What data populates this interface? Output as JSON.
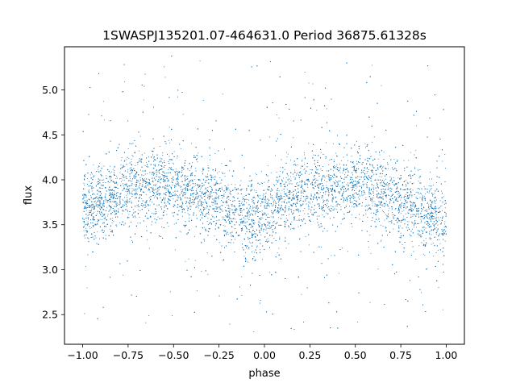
{
  "chart_data": {
    "type": "scatter",
    "title": "1SWASPJ135201.07-464631.0 Period 36875.61328s",
    "xlabel": "phase",
    "ylabel": "flux",
    "xlim": [
      -1.1,
      1.1
    ],
    "ylim": [
      2.17,
      5.48
    ],
    "xticks": [
      -1.0,
      -0.75,
      -0.5,
      -0.25,
      0.0,
      0.25,
      0.5,
      0.75,
      1.0
    ],
    "xtick_labels": [
      "−1.00",
      "−0.75",
      "−0.50",
      "−0.25",
      "0.00",
      "0.25",
      "0.50",
      "0.75",
      "1.00"
    ],
    "yticks": [
      2.5,
      3.0,
      3.5,
      4.0,
      4.5,
      5.0
    ],
    "ytick_labels": [
      "2.5",
      "3.0",
      "3.5",
      "4.0",
      "4.5",
      "5.0"
    ],
    "point_color": "#1f77b4",
    "grid": false,
    "legend": "none",
    "series": [
      {
        "phase_range": [
          -1.0,
          1.0
        ],
        "trend": {
          "phase": [
            -1.0,
            -0.9,
            -0.8,
            -0.7,
            -0.6,
            -0.5,
            -0.4,
            -0.3,
            -0.2,
            -0.1,
            0.0,
            0.1,
            0.2,
            0.3,
            0.4,
            0.5,
            0.6,
            0.7,
            0.8,
            0.9,
            1.0
          ],
          "flux": [
            3.65,
            3.75,
            3.86,
            3.93,
            3.95,
            3.92,
            3.86,
            3.78,
            3.68,
            3.57,
            3.58,
            3.76,
            3.88,
            3.93,
            3.95,
            3.92,
            3.87,
            3.8,
            3.7,
            3.6,
            3.57
          ]
        },
        "scatter_sigma": 0.2,
        "outlier_flux_range": [
          2.3,
          5.35
        ]
      }
    ]
  }
}
